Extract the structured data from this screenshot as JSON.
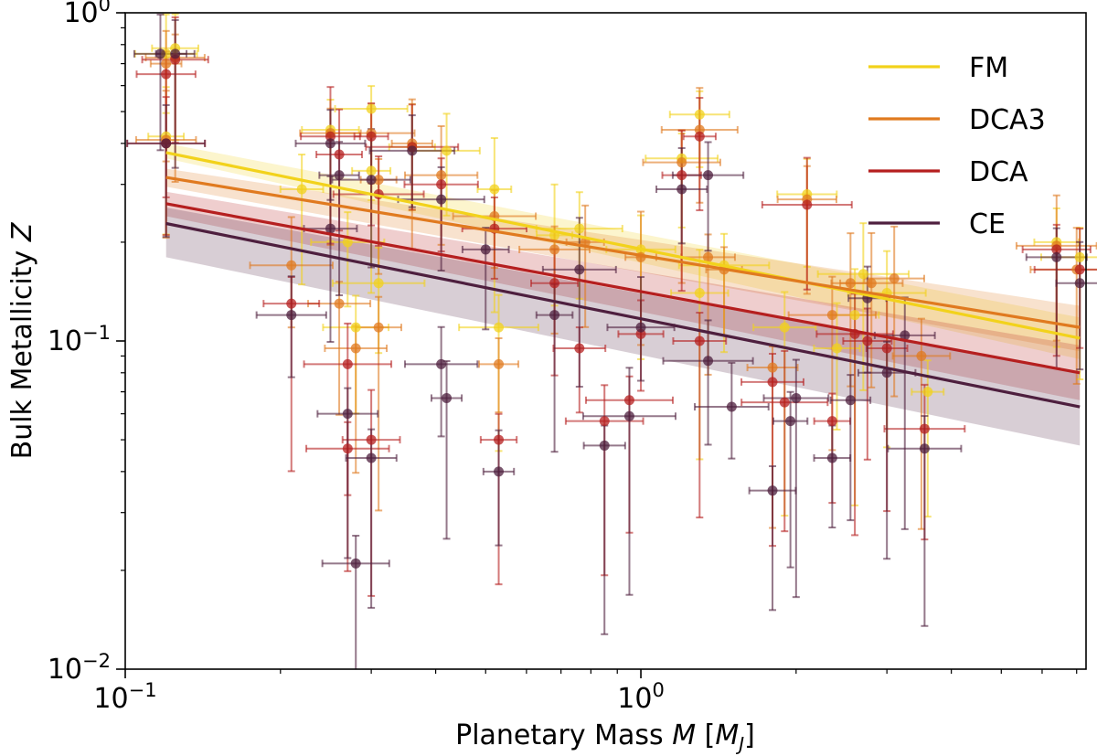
{
  "chart_data": {
    "type": "scatter",
    "title": "",
    "xlabel": "Planetary Mass M [M_J]",
    "xlabel_parts": [
      "Planetary Mass ",
      "M",
      " [",
      "M",
      "J",
      "]"
    ],
    "ylabel": "Bulk Metallicity Z",
    "ylabel_parts": [
      "Bulk Metallicity ",
      "Z"
    ],
    "xscale": "log",
    "yscale": "log",
    "xlim": [
      0.1,
      7.3
    ],
    "ylim": [
      0.01,
      1.0
    ],
    "x_ticks": [
      {
        "value": 0.1,
        "base": "10",
        "exp": "−1"
      },
      {
        "value": 1,
        "base": "10",
        "exp": "0"
      }
    ],
    "y_ticks": [
      {
        "value": 0.01,
        "base": "10",
        "exp": "−2"
      },
      {
        "value": 0.1,
        "base": "10",
        "exp": "−1"
      },
      {
        "value": 1,
        "base": "10",
        "exp": "0"
      }
    ],
    "legend_position": "top-right",
    "series": [
      {
        "name": "FM",
        "color": "#f2d21b",
        "fit": {
          "x0": 0.12,
          "y0": 0.375,
          "x1": 7.1,
          "y1": 0.102
        },
        "band": {
          "lower": [
            0.36,
            0.088
          ],
          "upper": [
            0.4,
            0.118
          ]
        },
        "points": [
          [
            0.12,
            0.75
          ],
          [
            0.125,
            0.78
          ],
          [
            0.12,
            0.42
          ],
          [
            0.25,
            0.44
          ],
          [
            0.3,
            0.51
          ],
          [
            0.36,
            0.39
          ],
          [
            0.42,
            0.38
          ],
          [
            0.52,
            0.29
          ],
          [
            0.3,
            0.33
          ],
          [
            0.22,
            0.29
          ],
          [
            0.27,
            0.2
          ],
          [
            0.31,
            0.15
          ],
          [
            0.28,
            0.11
          ],
          [
            0.53,
            0.11
          ],
          [
            0.68,
            0.21
          ],
          [
            0.76,
            0.22
          ],
          [
            1.0,
            0.19
          ],
          [
            1.2,
            0.36
          ],
          [
            1.3,
            0.49
          ],
          [
            1.3,
            0.14
          ],
          [
            1.45,
            0.17
          ],
          [
            1.9,
            0.11
          ],
          [
            2.1,
            0.28
          ],
          [
            2.4,
            0.095
          ],
          [
            2.6,
            0.12
          ],
          [
            2.7,
            0.16
          ],
          [
            3.0,
            0.14
          ],
          [
            3.6,
            0.07
          ],
          [
            6.4,
            0.2
          ],
          [
            7.1,
            0.18
          ]
        ]
      },
      {
        "name": "DCA3",
        "color": "#e07a1f",
        "fit": {
          "x0": 0.12,
          "y0": 0.315,
          "x1": 7.1,
          "y1": 0.11
        },
        "band": {
          "lower": [
            0.295,
            0.093
          ],
          "upper": [
            0.335,
            0.128
          ]
        },
        "points": [
          [
            0.12,
            0.7
          ],
          [
            0.125,
            0.73
          ],
          [
            0.12,
            0.41
          ],
          [
            0.25,
            0.43
          ],
          [
            0.3,
            0.43
          ],
          [
            0.36,
            0.4
          ],
          [
            0.41,
            0.32
          ],
          [
            0.52,
            0.24
          ],
          [
            0.31,
            0.31
          ],
          [
            0.21,
            0.17
          ],
          [
            0.26,
            0.13
          ],
          [
            0.28,
            0.095
          ],
          [
            0.31,
            0.11
          ],
          [
            0.53,
            0.085
          ],
          [
            0.68,
            0.19
          ],
          [
            0.78,
            0.2
          ],
          [
            1.0,
            0.18
          ],
          [
            1.2,
            0.35
          ],
          [
            1.3,
            0.44
          ],
          [
            1.35,
            0.18
          ],
          [
            1.45,
            0.165
          ],
          [
            1.8,
            0.083
          ],
          [
            2.1,
            0.27
          ],
          [
            2.35,
            0.12
          ],
          [
            2.55,
            0.15
          ],
          [
            2.8,
            0.15
          ],
          [
            3.1,
            0.155
          ],
          [
            3.5,
            0.09
          ],
          [
            6.4,
            0.195
          ],
          [
            7.0,
            0.165
          ]
        ]
      },
      {
        "name": "DCA",
        "color": "#b51f1f",
        "fit": {
          "x0": 0.12,
          "y0": 0.262,
          "x1": 7.1,
          "y1": 0.08
        },
        "band": {
          "lower": [
            0.24,
            0.066
          ],
          "upper": [
            0.285,
            0.097
          ]
        },
        "points": [
          [
            0.12,
            0.65
          ],
          [
            0.125,
            0.72
          ],
          [
            0.12,
            0.4
          ],
          [
            0.25,
            0.42
          ],
          [
            0.3,
            0.42
          ],
          [
            0.36,
            0.39
          ],
          [
            0.41,
            0.3
          ],
          [
            0.52,
            0.22
          ],
          [
            0.31,
            0.28
          ],
          [
            0.21,
            0.13
          ],
          [
            0.26,
            0.37
          ],
          [
            0.27,
            0.085
          ],
          [
            0.27,
            0.047
          ],
          [
            0.3,
            0.05
          ],
          [
            0.53,
            0.05
          ],
          [
            0.68,
            0.15
          ],
          [
            0.76,
            0.095
          ],
          [
            0.85,
            0.057
          ],
          [
            0.95,
            0.066
          ],
          [
            1.0,
            0.105
          ],
          [
            1.2,
            0.32
          ],
          [
            1.3,
            0.42
          ],
          [
            1.3,
            0.1
          ],
          [
            1.8,
            0.075
          ],
          [
            1.9,
            0.065
          ],
          [
            2.1,
            0.26
          ],
          [
            2.35,
            0.057
          ],
          [
            2.6,
            0.105
          ],
          [
            2.75,
            0.1
          ],
          [
            3.0,
            0.095
          ],
          [
            3.55,
            0.054
          ],
          [
            6.4,
            0.19
          ],
          [
            7.1,
            0.165
          ]
        ]
      },
      {
        "name": "CE",
        "color": "#4e1f3e",
        "fit": {
          "x0": 0.12,
          "y0": 0.228,
          "x1": 7.1,
          "y1": 0.063
        },
        "band": {
          "lower": [
            0.18,
            0.048
          ],
          "upper": [
            0.255,
            0.08
          ]
        },
        "points": [
          [
            0.117,
            0.75
          ],
          [
            0.125,
            0.75
          ],
          [
            0.12,
            0.4
          ],
          [
            0.25,
            0.4
          ],
          [
            0.26,
            0.32
          ],
          [
            0.3,
            0.31
          ],
          [
            0.36,
            0.38
          ],
          [
            0.41,
            0.27
          ],
          [
            0.5,
            0.19
          ],
          [
            0.25,
            0.22
          ],
          [
            0.21,
            0.12
          ],
          [
            0.27,
            0.06
          ],
          [
            0.3,
            0.044
          ],
          [
            0.28,
            0.021
          ],
          [
            0.41,
            0.085
          ],
          [
            0.42,
            0.067
          ],
          [
            0.53,
            0.04
          ],
          [
            0.68,
            0.12
          ],
          [
            0.76,
            0.165
          ],
          [
            0.85,
            0.048
          ],
          [
            0.95,
            0.059
          ],
          [
            1.0,
            0.11
          ],
          [
            1.2,
            0.29
          ],
          [
            1.35,
            0.32
          ],
          [
            1.35,
            0.087
          ],
          [
            1.5,
            0.063
          ],
          [
            1.8,
            0.035
          ],
          [
            1.95,
            0.057
          ],
          [
            2.0,
            0.067
          ],
          [
            2.35,
            0.044
          ],
          [
            2.55,
            0.066
          ],
          [
            2.75,
            0.135
          ],
          [
            3.0,
            0.08
          ],
          [
            3.25,
            0.104
          ],
          [
            3.55,
            0.047
          ],
          [
            6.4,
            0.18
          ],
          [
            7.1,
            0.15
          ]
        ]
      }
    ]
  }
}
